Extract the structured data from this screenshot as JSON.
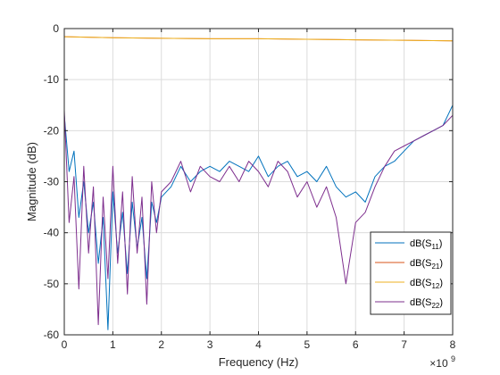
{
  "chart_data": {
    "type": "line",
    "xlabel": "Frequency (Hz)",
    "ylabel": "Magnitude (dB)",
    "x_multiplier_label": "×10",
    "x_multiplier_exponent": "9",
    "xlim": [
      0,
      8000000000
    ],
    "ylim": [
      -60,
      0
    ],
    "xticks": [
      0,
      1000000000,
      2000000000,
      3000000000,
      4000000000,
      5000000000,
      6000000000,
      7000000000,
      8000000000
    ],
    "xtick_labels": [
      "0",
      "1",
      "2",
      "3",
      "4",
      "5",
      "6",
      "7",
      "8"
    ],
    "yticks": [
      -60,
      -50,
      -40,
      -30,
      -20,
      -10,
      0
    ],
    "ytick_labels": [
      "-60",
      "-50",
      "-40",
      "-30",
      "-20",
      "-10",
      "0"
    ],
    "grid": true,
    "legend_position": "bottom-right",
    "series": [
      {
        "name": "dB(S11)",
        "legend_main": "dB(S",
        "legend_sub": "11",
        "color": "#0072BD",
        "x": [
          0,
          0.1,
          0.2,
          0.3,
          0.4,
          0.5,
          0.6,
          0.7,
          0.8,
          0.9,
          1.0,
          1.1,
          1.2,
          1.3,
          1.4,
          1.5,
          1.6,
          1.7,
          1.8,
          1.9,
          2.0,
          2.2,
          2.4,
          2.6,
          2.8,
          3.0,
          3.2,
          3.4,
          3.6,
          3.8,
          4.0,
          4.2,
          4.4,
          4.6,
          4.8,
          5.0,
          5.2,
          5.4,
          5.6,
          5.8,
          6.0,
          6.2,
          6.4,
          6.6,
          6.8,
          7.0,
          7.2,
          7.4,
          7.6,
          7.8,
          8.0
        ],
        "y": [
          -17,
          -28,
          -24,
          -37,
          -30,
          -40,
          -34,
          -46,
          -37,
          -59,
          -32,
          -44,
          -36,
          -48,
          -34,
          -43,
          -37,
          -49,
          -34,
          -38,
          -33,
          -31,
          -27,
          -30,
          -28,
          -27,
          -28,
          -26,
          -27,
          -28,
          -25,
          -29,
          -27,
          -26,
          -29,
          -28,
          -30,
          -27,
          -31,
          -33,
          -32,
          -34,
          -29,
          -27,
          -26,
          -24,
          -22,
          -21,
          -20,
          -19,
          -15
        ],
        "x_unit": "GHz"
      },
      {
        "name": "dB(S21)",
        "legend_main": "dB(S",
        "legend_sub": "21",
        "color": "#D95319",
        "x": [
          0,
          1,
          2,
          3,
          4,
          5,
          6,
          7,
          8
        ],
        "y": [
          -1.6,
          -1.8,
          -1.9,
          -2.0,
          -2.0,
          -2.1,
          -2.2,
          -2.3,
          -2.4
        ],
        "x_unit": "GHz"
      },
      {
        "name": "dB(S12)",
        "legend_main": "dB(S",
        "legend_sub": "12",
        "color": "#EDB120",
        "x": [
          0,
          1,
          2,
          3,
          4,
          5,
          6,
          7,
          8
        ],
        "y": [
          -1.6,
          -1.8,
          -1.9,
          -2.0,
          -2.0,
          -2.1,
          -2.2,
          -2.3,
          -2.4
        ],
        "x_unit": "GHz"
      },
      {
        "name": "dB(S22)",
        "legend_main": "dB(S",
        "legend_sub": "22",
        "color": "#7E2F8E",
        "x": [
          0,
          0.1,
          0.2,
          0.3,
          0.4,
          0.5,
          0.6,
          0.7,
          0.8,
          0.9,
          1.0,
          1.1,
          1.2,
          1.3,
          1.4,
          1.5,
          1.6,
          1.7,
          1.8,
          1.9,
          2.0,
          2.2,
          2.4,
          2.6,
          2.8,
          3.0,
          3.2,
          3.4,
          3.6,
          3.8,
          4.0,
          4.2,
          4.4,
          4.6,
          4.8,
          5.0,
          5.2,
          5.4,
          5.6,
          5.8,
          6.0,
          6.2,
          6.4,
          6.6,
          6.8,
          7.0,
          7.2,
          7.4,
          7.6,
          7.8,
          8.0
        ],
        "y": [
          -16,
          -38,
          -29,
          -51,
          -27,
          -44,
          -31,
          -58,
          -33,
          -49,
          -27,
          -46,
          -32,
          -52,
          -29,
          -44,
          -33,
          -54,
          -30,
          -40,
          -32,
          -30,
          -26,
          -32,
          -27,
          -29,
          -30,
          -27,
          -30,
          -26,
          -28,
          -31,
          -26,
          -28,
          -33,
          -30,
          -35,
          -31,
          -37,
          -50,
          -38,
          -36,
          -31,
          -27,
          -24,
          -23,
          -22,
          -21,
          -20,
          -19,
          -17
        ],
        "x_unit": "GHz"
      }
    ]
  }
}
